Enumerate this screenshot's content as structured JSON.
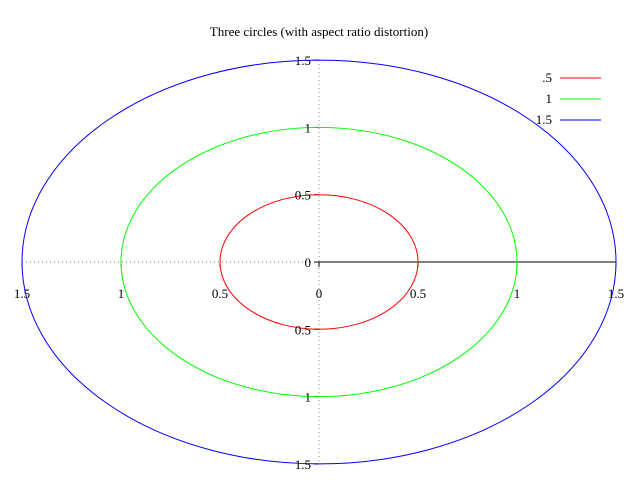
{
  "chart_data": {
    "type": "polar",
    "title": "Three circles (with aspect ratio distortion)",
    "axis_range": [
      -1.5,
      1.5
    ],
    "x_tick_labels": [
      "1.5",
      "1",
      "0.5",
      "0",
      "0.5",
      "1",
      "1.5"
    ],
    "x_tick_values": [
      -1.5,
      -1,
      -0.5,
      0,
      0.5,
      1,
      1.5
    ],
    "y_tick_labels": [
      "1.5",
      "1",
      "0.5",
      "0",
      "0.5",
      "1",
      "1.5"
    ],
    "y_tick_values": [
      1.5,
      1,
      0.5,
      0,
      -0.5,
      -1,
      -1.5
    ],
    "grid": "dotted axes through origin",
    "legend_position": "top-right",
    "series": [
      {
        "name": ".5",
        "radius": 0.5,
        "color": "#ff0000"
      },
      {
        "name": "1",
        "radius": 1,
        "color": "#00ff00"
      },
      {
        "name": "1.5",
        "radius": 1.5,
        "color": "#0000ff"
      }
    ],
    "radial_axis_color": "#000000"
  }
}
